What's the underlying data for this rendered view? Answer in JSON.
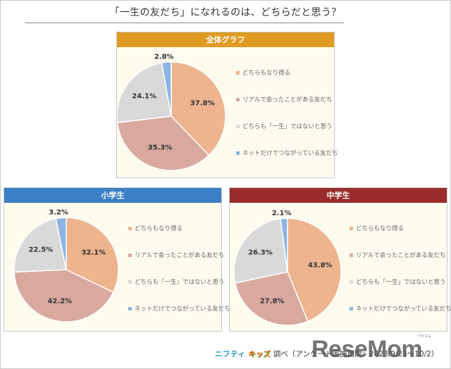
{
  "title": "「一生の友だち」になれるのは、どちらだと思う？",
  "legend_labels": [
    "どちらもなり得る",
    "リアルで会ったことがある友だち",
    "どちらも「一生」ではないと思う",
    "ネットだけでつながっている友だち"
  ],
  "colors": {
    "slice_1": "#edb48e",
    "slice_2": "#d9a9a0",
    "slice_3": "#d9d9d9",
    "slice_4": "#8db4e2",
    "header_overall": "#e09b22",
    "header_elementary": "#3b7fc4",
    "header_junior_high": "#9b2a2a",
    "panel_bg": "#fdfbee"
  },
  "panels": {
    "overall": {
      "header": "全体グラフ"
    },
    "elementary": {
      "header": "小学生"
    },
    "junior_high": {
      "header": "中学生"
    }
  },
  "footer": {
    "brand_nifty": "ニフティ",
    "brand_kids": "キッズ",
    "text": "調べ（アンケート実施期間：2023/9/23～10/2）"
  },
  "watermark": {
    "text": "ReseMom",
    "ruby": "リセマム"
  },
  "chart_data": [
    {
      "type": "pie",
      "title": "全体グラフ",
      "categories": [
        "どちらもなり得る",
        "リアルで会ったことがある友だち",
        "どちらも「一生」ではないと思う",
        "ネットだけでつながっている友だち"
      ],
      "values": [
        37.8,
        35.3,
        24.1,
        2.8
      ],
      "labels": [
        "37.8%",
        "35.3%",
        "24.1%",
        "2.8%"
      ],
      "legend_position": "right"
    },
    {
      "type": "pie",
      "title": "小学生",
      "categories": [
        "どちらもなり得る",
        "リアルで会ったことがある友だち",
        "どちらも「一生」ではないと思う",
        "ネットだけでつながっている友だち"
      ],
      "values": [
        32.1,
        42.2,
        22.5,
        3.2
      ],
      "labels": [
        "32.1%",
        "42.2%",
        "22.5%",
        "3.2%"
      ],
      "legend_position": "right"
    },
    {
      "type": "pie",
      "title": "中学生",
      "categories": [
        "どちらもなり得る",
        "リアルで会ったことがある友だち",
        "どちらも「一生」ではないと思う",
        "ネットだけでつながっている友だち"
      ],
      "values": [
        43.8,
        27.8,
        26.3,
        2.1
      ],
      "labels": [
        "43.8%",
        "27.8%",
        "26.3%",
        "2.1%"
      ],
      "legend_position": "right"
    }
  ]
}
